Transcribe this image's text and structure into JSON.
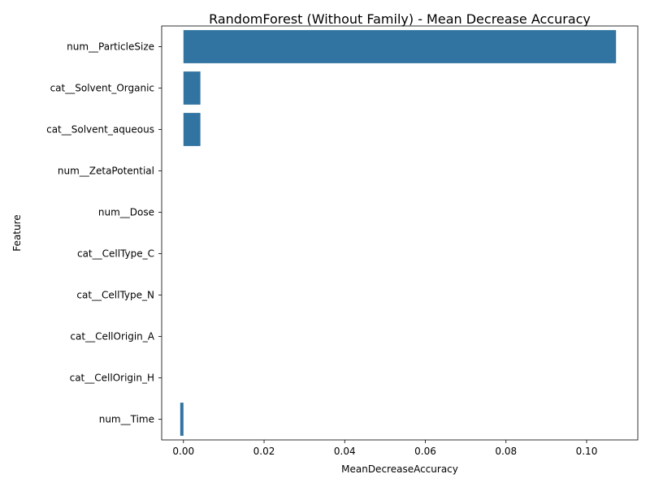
{
  "chart_data": {
    "type": "bar",
    "orientation": "horizontal",
    "title": "RandomForest (Without Family) - Mean Decrease Accuracy",
    "xlabel": "MeanDecreaseAccuracy",
    "ylabel": "Feature",
    "categories": [
      "num__ParticleSize",
      "cat__Solvent_Organic",
      "cat__Solvent_aqueous",
      "num__ZetaPotential",
      "num__Dose",
      "cat__CellType_C",
      "cat__CellType_N",
      "cat__CellOrigin_A",
      "cat__CellOrigin_H",
      "num__Time"
    ],
    "values": [
      0.1073,
      0.0042,
      0.0042,
      0.0,
      0.0,
      0.0,
      0.0,
      0.0,
      0.0,
      -0.0008
    ],
    "xlim": [
      -0.0054,
      0.1127
    ],
    "xticks": [
      0.0,
      0.02,
      0.04,
      0.06,
      0.08,
      0.1
    ],
    "xtick_labels": [
      "0.00",
      "0.02",
      "0.04",
      "0.06",
      "0.08",
      "0.10"
    ],
    "bar_color": "#3274a1",
    "grid": false
  }
}
